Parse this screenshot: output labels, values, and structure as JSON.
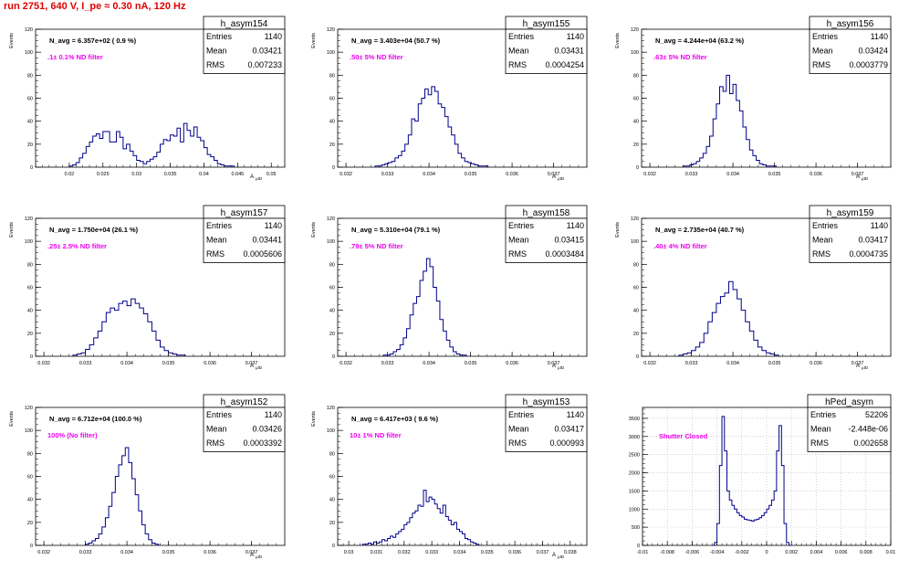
{
  "run_title": "run 2751,   640 V, I_pe ≈ 0.30 nA, 120 Hz",
  "colors": {
    "title": "#e00000",
    "histogram": "#00008b",
    "annotation": "#ee00ee",
    "frame": "#000000"
  },
  "chart_data": [
    {
      "type": "bar",
      "name": "h_asym154",
      "stats": {
        "entries_label": "Entries",
        "entries": "1140",
        "mean_label": "Mean",
        "mean": "0.03421",
        "rms_label": "RMS",
        "rms": "0.007233"
      },
      "navg": "N_avg = 6.357e+02 ( 0.9 %)",
      "filter": ".1± 0.1% ND filter",
      "ylabel": "Events",
      "xlabel": "A",
      "xlabel_sub": "μID",
      "xlim": [
        0.015,
        0.052
      ],
      "ylim": [
        0,
        120
      ],
      "xticks": [
        0.02,
        0.025,
        0.03,
        0.035,
        0.04,
        0.045,
        0.05
      ],
      "xtick_labels": [
        "0.02",
        "0.025",
        "0.03",
        "0.035",
        "0.04",
        "0.045",
        "0.05"
      ],
      "yticks": [
        0,
        20,
        40,
        60,
        80,
        100,
        120
      ],
      "ytick_labels": [
        "0",
        "20",
        "40",
        "60",
        "80",
        "100",
        "120"
      ],
      "bin_start": 0.02,
      "bin_width": 0.0005,
      "counts": [
        1,
        2,
        4,
        8,
        12,
        18,
        22,
        27,
        29,
        25,
        31,
        31,
        22,
        22,
        31,
        26,
        16,
        20,
        14,
        10,
        6,
        5,
        3,
        5,
        7,
        9,
        13,
        20,
        24,
        23,
        28,
        27,
        34,
        22,
        38,
        32,
        27,
        35,
        26,
        23,
        17,
        11,
        9,
        6,
        3,
        2,
        1,
        1,
        1
      ]
    },
    {
      "type": "bar",
      "name": "h_asym155",
      "stats": {
        "entries_label": "Entries",
        "entries": "1140",
        "mean_label": "Mean",
        "mean": "0.03431",
        "rms_label": "RMS",
        "rms": "0.0004254"
      },
      "navg": "N_avg = 3.403e+04 (50.7 %)",
      "filter": ".50± 5% ND filter",
      "ylabel": "Events",
      "xlabel": "A",
      "xlabel_sub": "μID",
      "xlim": [
        0.0318,
        0.0378
      ],
      "ylim": [
        0,
        120
      ],
      "xticks": [
        0.032,
        0.033,
        0.034,
        0.035,
        0.036,
        0.037
      ],
      "xtick_labels": [
        "0.032",
        "0.033",
        "0.034",
        "0.035",
        "0.036",
        "0.037"
      ],
      "yticks": [
        0,
        20,
        40,
        60,
        80,
        100,
        120
      ],
      "ytick_labels": [
        "0",
        "20",
        "40",
        "60",
        "80",
        "100",
        "120"
      ],
      "bin_start": 0.0327,
      "bin_width": 8e-05,
      "counts": [
        1,
        1,
        2,
        3,
        4,
        5,
        8,
        10,
        14,
        20,
        28,
        42,
        40,
        55,
        60,
        68,
        63,
        70,
        66,
        55,
        52,
        44,
        35,
        28,
        20,
        12,
        8,
        5,
        4,
        3,
        2,
        1,
        1,
        1
      ]
    },
    {
      "type": "bar",
      "name": "h_asym156",
      "stats": {
        "entries_label": "Entries",
        "entries": "1140",
        "mean_label": "Mean",
        "mean": "0.03424",
        "rms_label": "RMS",
        "rms": "0.0003779"
      },
      "navg": "N_avg = 4.244e+04 (63.2 %)",
      "filter": ".63± 5% ND filter",
      "ylabel": "Events",
      "xlabel": "A",
      "xlabel_sub": "μID",
      "xlim": [
        0.0318,
        0.0378
      ],
      "ylim": [
        0,
        120
      ],
      "xticks": [
        0.032,
        0.033,
        0.034,
        0.035,
        0.036,
        0.037
      ],
      "xtick_labels": [
        "0.032",
        "0.033",
        "0.034",
        "0.035",
        "0.036",
        "0.037"
      ],
      "yticks": [
        0,
        20,
        40,
        60,
        80,
        100,
        120
      ],
      "ytick_labels": [
        "0",
        "20",
        "40",
        "60",
        "80",
        "100",
        "120"
      ],
      "bin_start": 0.0328,
      "bin_width": 8e-05,
      "counts": [
        1,
        1,
        2,
        3,
        5,
        8,
        12,
        18,
        27,
        42,
        55,
        70,
        66,
        80,
        64,
        72,
        58,
        49,
        35,
        24,
        15,
        10,
        6,
        3,
        2,
        1,
        1,
        1
      ]
    },
    {
      "type": "bar",
      "name": "h_asym157",
      "stats": {
        "entries_label": "Entries",
        "entries": "1140",
        "mean_label": "Mean",
        "mean": "0.03441",
        "rms_label": "RMS",
        "rms": "0.0005606"
      },
      "navg": "N_avg = 1.750e+04 (26.1 %)",
      "filter": ".25± 2.5% ND filter",
      "ylabel": "Events",
      "xlabel": "A",
      "xlabel_sub": "μID",
      "xlim": [
        0.0318,
        0.0378
      ],
      "ylim": [
        0,
        120
      ],
      "xticks": [
        0.032,
        0.033,
        0.034,
        0.035,
        0.036,
        0.037
      ],
      "xtick_labels": [
        "0.032",
        "0.033",
        "0.034",
        "0.035",
        "0.036",
        "0.037"
      ],
      "yticks": [
        0,
        20,
        40,
        60,
        80,
        100,
        120
      ],
      "ytick_labels": [
        "0",
        "20",
        "40",
        "60",
        "80",
        "100",
        "120"
      ],
      "bin_start": 0.0327,
      "bin_width": 0.0001,
      "counts": [
        1,
        2,
        3,
        6,
        10,
        16,
        22,
        30,
        38,
        42,
        40,
        46,
        48,
        44,
        50,
        46,
        42,
        37,
        30,
        22,
        14,
        8,
        5,
        3,
        2,
        1,
        1
      ]
    },
    {
      "type": "bar",
      "name": "h_asym158",
      "stats": {
        "entries_label": "Entries",
        "entries": "1140",
        "mean_label": "Mean",
        "mean": "0.03415",
        "rms_label": "RMS",
        "rms": "0.0003484"
      },
      "navg": "N_avg = 5.310e+04 (79.1 %)",
      "filter": ".79± 5% ND filter",
      "ylabel": "Events",
      "xlabel": "A",
      "xlabel_sub": "μID",
      "xlim": [
        0.0318,
        0.0378
      ],
      "ylim": [
        0,
        120
      ],
      "xticks": [
        0.032,
        0.033,
        0.034,
        0.035,
        0.036,
        0.037
      ],
      "xtick_labels": [
        "0.032",
        "0.033",
        "0.034",
        "0.035",
        "0.036",
        "0.037"
      ],
      "yticks": [
        0,
        20,
        40,
        60,
        80,
        100,
        120
      ],
      "ytick_labels": [
        "0",
        "20",
        "40",
        "60",
        "80",
        "100",
        "120"
      ],
      "bin_start": 0.0329,
      "bin_width": 8e-05,
      "counts": [
        1,
        1,
        2,
        4,
        6,
        10,
        16,
        24,
        36,
        46,
        52,
        66,
        74,
        85,
        78,
        60,
        48,
        32,
        22,
        14,
        8,
        4,
        2,
        1,
        1
      ]
    },
    {
      "type": "bar",
      "name": "h_asym159",
      "stats": {
        "entries_label": "Entries",
        "entries": "1140",
        "mean_label": "Mean",
        "mean": "0.03417",
        "rms_label": "RMS",
        "rms": "0.0004735"
      },
      "navg": "N_avg = 2.735e+04 (40.7 %)",
      "filter": ".40± 4% ND filter",
      "ylabel": "Events",
      "xlabel": "A",
      "xlabel_sub": "μID",
      "xlim": [
        0.0318,
        0.0378
      ],
      "ylim": [
        0,
        120
      ],
      "xticks": [
        0.032,
        0.033,
        0.034,
        0.035,
        0.036,
        0.037
      ],
      "xtick_labels": [
        "0.032",
        "0.033",
        "0.034",
        "0.035",
        "0.036",
        "0.037"
      ],
      "yticks": [
        0,
        20,
        40,
        60,
        80,
        100,
        120
      ],
      "ytick_labels": [
        "0",
        "20",
        "40",
        "60",
        "80",
        "100",
        "120"
      ],
      "bin_start": 0.0327,
      "bin_width": 0.0001,
      "counts": [
        1,
        2,
        3,
        5,
        8,
        12,
        20,
        30,
        38,
        46,
        52,
        55,
        65,
        58,
        50,
        40,
        30,
        22,
        14,
        8,
        5,
        3,
        2,
        1
      ]
    },
    {
      "type": "bar",
      "name": "h_asym152",
      "stats": {
        "entries_label": "Entries",
        "entries": "1140",
        "mean_label": "Mean",
        "mean": "0.03426",
        "rms_label": "RMS",
        "rms": "0.0003392"
      },
      "navg": "N_avg = 6.712e+04 (100.0 %)",
      "filter": "100% (No filter)",
      "ylabel": "Events",
      "xlabel": "A",
      "xlabel_sub": "μID",
      "xlim": [
        0.0318,
        0.0378
      ],
      "ylim": [
        0,
        120
      ],
      "xticks": [
        0.032,
        0.033,
        0.034,
        0.035,
        0.036,
        0.037
      ],
      "xtick_labels": [
        "0.032",
        "0.033",
        "0.034",
        "0.035",
        "0.036",
        "0.037"
      ],
      "yticks": [
        0,
        20,
        40,
        60,
        80,
        100,
        120
      ],
      "ytick_labels": [
        "0",
        "20",
        "40",
        "60",
        "80",
        "100",
        "120"
      ],
      "bin_start": 0.033,
      "bin_width": 8e-05,
      "counts": [
        1,
        2,
        4,
        6,
        10,
        16,
        24,
        34,
        46,
        60,
        70,
        78,
        85,
        72,
        58,
        44,
        30,
        18,
        10,
        5,
        2,
        1
      ]
    },
    {
      "type": "bar",
      "name": "h_asym153",
      "stats": {
        "entries_label": "Entries",
        "entries": "1140",
        "mean_label": "Mean",
        "mean": "0.03417",
        "rms_label": "RMS",
        "rms": "0.000993"
      },
      "navg": "N_avg = 6.417e+03 ( 9.6 %)",
      "filter": "10± 1% ND filter",
      "ylabel": "Events",
      "xlabel": "A",
      "xlabel_sub": "μID",
      "xlim": [
        0.0296,
        0.0386
      ],
      "ylim": [
        0,
        120
      ],
      "xticks": [
        0.03,
        0.031,
        0.032,
        0.033,
        0.034,
        0.035,
        0.036,
        0.037,
        0.038
      ],
      "xtick_labels": [
        "0.03",
        "0.031",
        "0.032",
        "0.033",
        "0.034",
        "0.035",
        "0.036",
        "0.037",
        "0.038"
      ],
      "yticks": [
        0,
        20,
        40,
        60,
        80,
        100,
        120
      ],
      "ytick_labels": [
        "0",
        "20",
        "40",
        "60",
        "80",
        "100",
        "120"
      ],
      "bin_start": 0.0305,
      "bin_width": 0.0001,
      "counts": [
        1,
        1,
        2,
        1,
        3,
        2,
        3,
        5,
        4,
        6,
        8,
        7,
        10,
        12,
        14,
        18,
        20,
        24,
        28,
        30,
        35,
        34,
        48,
        38,
        42,
        40,
        36,
        32,
        28,
        35,
        25,
        22,
        18,
        20,
        14,
        12,
        10,
        6,
        5,
        3,
        2,
        1
      ]
    },
    {
      "type": "bar",
      "name": "hPed_asym",
      "stats": {
        "entries_label": "Entries",
        "entries": "52206",
        "mean_label": "Mean",
        "mean": "-2.448e-06",
        "rms_label": "RMS",
        "rms": "0.002658"
      },
      "filter": "Shutter Closed",
      "xlim": [
        -0.01,
        0.01
      ],
      "ylim": [
        0,
        3800
      ],
      "xticks": [
        -0.01,
        -0.008,
        -0.006,
        -0.004,
        -0.002,
        0,
        0.002,
        0.004,
        0.006,
        0.008,
        0.01
      ],
      "xtick_labels": [
        "-0.01",
        "-0.008",
        "-0.006",
        "-0.004",
        "-0.002",
        "0",
        "0.002",
        "0.004",
        "0.006",
        "0.008",
        "0.01"
      ],
      "yticks": [
        0,
        500,
        1000,
        1500,
        2000,
        2500,
        3000,
        3500
      ],
      "ytick_labels": [
        "0",
        "500",
        "1000",
        "1500",
        "2000",
        "2500",
        "3000",
        "3500"
      ],
      "bin_start": -0.0044,
      "bin_width": 0.0002,
      "counts": [
        0,
        80,
        600,
        2200,
        3550,
        2600,
        1500,
        1250,
        1100,
        1000,
        900,
        820,
        780,
        720,
        700,
        690,
        670,
        700,
        720,
        760,
        820,
        900,
        1000,
        1100,
        1250,
        1500,
        2600,
        3300,
        2200,
        600,
        80,
        0
      ]
    }
  ]
}
